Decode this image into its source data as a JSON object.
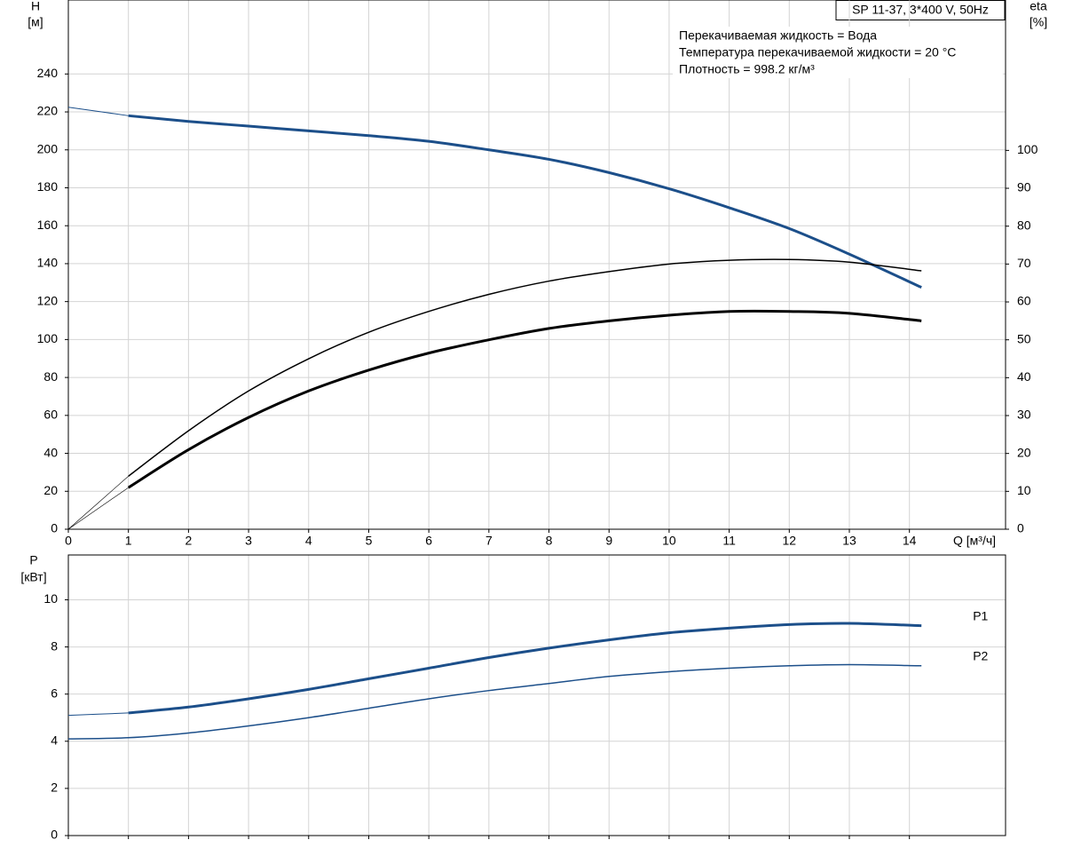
{
  "chart_data": [
    {
      "type": "line",
      "title": "SP 11-37, 3*400 V, 50Hz",
      "notes": [
        "Перекачиваемая жидкость = Вода",
        "Температура перекачиваемой жидкости = 20 °C",
        "Плотность = 998.2 кг/м³"
      ],
      "y_label": "H",
      "y_unit": "[м]",
      "y2_label": "eta",
      "y2_unit": "[%]",
      "x_label": "Q [м³/ч]",
      "xlim": [
        0,
        15.6
      ],
      "xticks": [
        0,
        1,
        2,
        3,
        4,
        5,
        6,
        7,
        8,
        9,
        10,
        11,
        12,
        13,
        14
      ],
      "ylim": [
        0,
        279
      ],
      "yticks": [
        0,
        20,
        40,
        60,
        80,
        100,
        120,
        140,
        160,
        180,
        200,
        220,
        240
      ],
      "y2lim": [
        0,
        139.7
      ],
      "y2ticks": [
        0,
        10,
        20,
        30,
        40,
        50,
        60,
        70,
        80,
        90,
        100
      ],
      "grid": true,
      "series": [
        {
          "color": "#1c4f8a",
          "width": 3,
          "x": [
            1,
            2,
            3,
            4,
            5,
            6,
            7,
            8,
            9,
            10,
            11,
            12,
            13,
            14.2
          ],
          "values": [
            218,
            215,
            212.5,
            210,
            207.5,
            204.5,
            200,
            195,
            188,
            179.5,
            169.5,
            158.5,
            145,
            127.5
          ]
        },
        {
          "color": "#1c4f8a",
          "width": 1,
          "x": [
            0,
            1
          ],
          "values": [
            222.5,
            218
          ]
        },
        {
          "color": "#000000",
          "width": 1.5,
          "axis": "y2",
          "x": [
            1,
            2,
            3,
            4,
            5,
            6,
            7,
            8,
            9,
            10,
            11,
            12,
            13,
            14.2
          ],
          "values": [
            14,
            26,
            36.5,
            45,
            52,
            57.5,
            62,
            65.5,
            68,
            70,
            71,
            71.2,
            70.5,
            68.2
          ]
        },
        {
          "color": "#000000",
          "width": 0.6,
          "axis": "y2",
          "x": [
            0,
            1
          ],
          "values": [
            0,
            14
          ]
        },
        {
          "color": "#000000",
          "width": 3,
          "axis": "y2",
          "x": [
            1,
            2,
            3,
            4,
            5,
            6,
            7,
            8,
            9,
            10,
            11,
            12,
            13,
            14.2
          ],
          "values": [
            11,
            21,
            29.5,
            36.5,
            42,
            46.5,
            50,
            53,
            55,
            56.5,
            57.5,
            57.5,
            57,
            55
          ]
        },
        {
          "color": "#000000",
          "width": 0.6,
          "axis": "y2",
          "x": [
            0,
            1
          ],
          "values": [
            0,
            11
          ]
        }
      ]
    },
    {
      "type": "line",
      "y_label": "P",
      "y_unit": "[кВт]",
      "xlim": [
        0,
        15.6
      ],
      "xticks": [
        0,
        1,
        2,
        3,
        4,
        5,
        6,
        7,
        8,
        9,
        10,
        11,
        12,
        13,
        14
      ],
      "xtick_labels": false,
      "ylim": [
        0,
        11.9
      ],
      "yticks": [
        0,
        2,
        4,
        6,
        8,
        10
      ],
      "grid": true,
      "series": [
        {
          "name": "P1",
          "color": "#1c4f8a",
          "width": 3,
          "x": [
            1,
            2,
            3,
            4,
            5,
            6,
            7,
            8,
            9,
            10,
            11,
            12,
            13,
            14.2
          ],
          "values": [
            5.2,
            5.45,
            5.8,
            6.2,
            6.65,
            7.1,
            7.55,
            7.95,
            8.3,
            8.6,
            8.8,
            8.95,
            9.0,
            8.9
          ]
        },
        {
          "color": "#1c4f8a",
          "width": 1,
          "x": [
            0,
            1
          ],
          "values": [
            5.1,
            5.2
          ]
        },
        {
          "name": "P2",
          "color": "#1c4f8a",
          "width": 1.5,
          "x": [
            0,
            1,
            2,
            3,
            4,
            5,
            6,
            7,
            8,
            9,
            10,
            11,
            12,
            13,
            14.2
          ],
          "values": [
            4.1,
            4.15,
            4.35,
            4.65,
            5.0,
            5.4,
            5.8,
            6.15,
            6.45,
            6.75,
            6.95,
            7.1,
            7.2,
            7.25,
            7.2
          ]
        }
      ]
    }
  ]
}
